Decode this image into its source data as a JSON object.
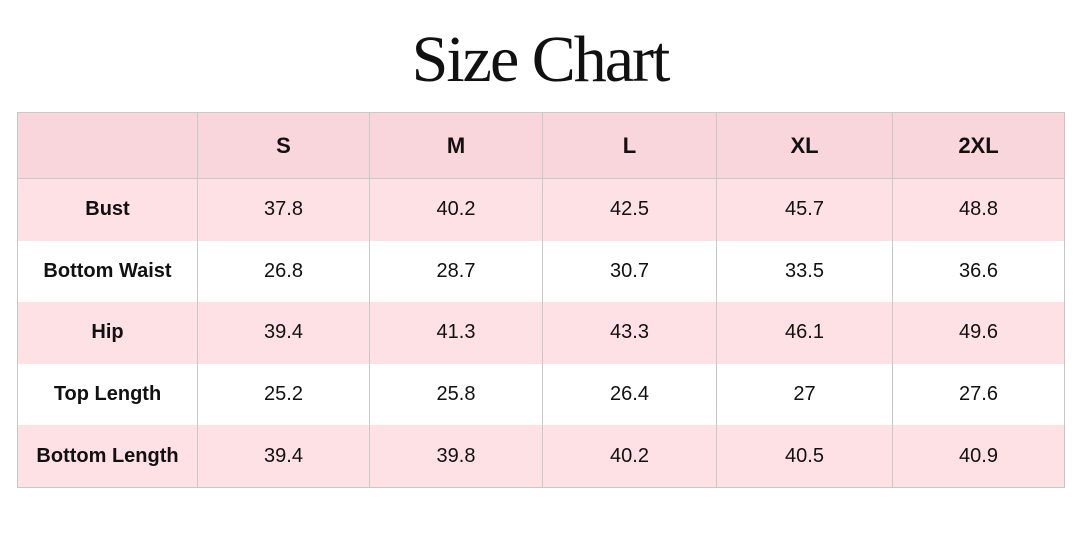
{
  "header": {
    "title": "Size Chart"
  },
  "table": {
    "columns": [
      "S",
      "M",
      "L",
      "XL",
      "2XL"
    ],
    "rows": [
      {
        "label": "Bust",
        "values": [
          "37.8",
          "40.2",
          "42.5",
          "45.7",
          "48.8"
        ]
      },
      {
        "label": "Bottom Waist",
        "values": [
          "26.8",
          "28.7",
          "30.7",
          "33.5",
          "36.6"
        ]
      },
      {
        "label": "Hip",
        "values": [
          "39.4",
          "41.3",
          "43.3",
          "46.1",
          "49.6"
        ]
      },
      {
        "label": "Top Length",
        "values": [
          "25.2",
          "25.8",
          "26.4",
          "27",
          "27.6"
        ]
      },
      {
        "label": "Bottom Length",
        "values": [
          "39.4",
          "39.8",
          "40.2",
          "40.5",
          "40.9"
        ]
      }
    ]
  }
}
